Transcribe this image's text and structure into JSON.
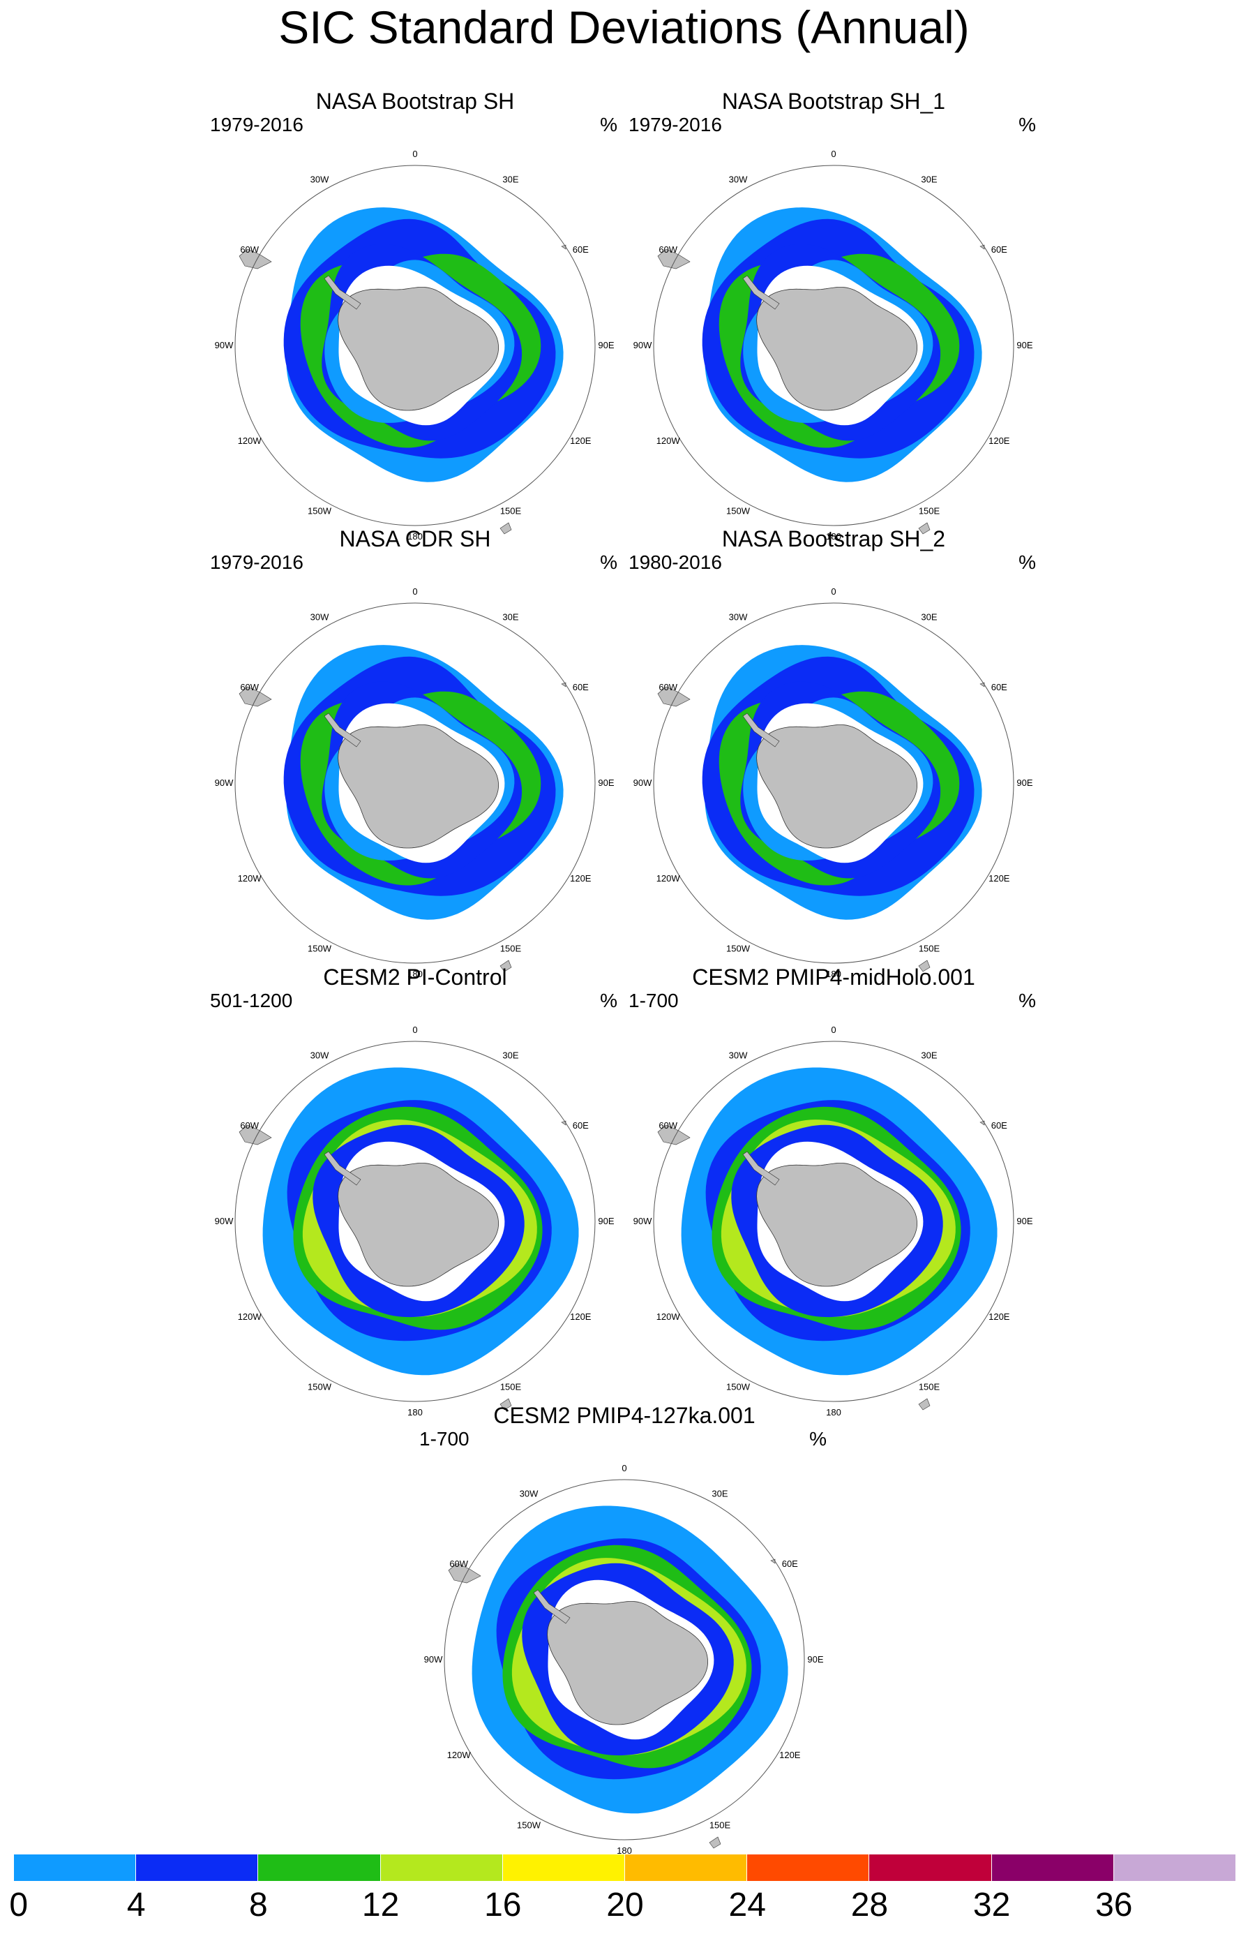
{
  "title": "SIC Standard Deviations (Annual)",
  "unit": "%",
  "longitude_labels": [
    "0",
    "30E",
    "60E",
    "90E",
    "120E",
    "150E",
    "180",
    "150W",
    "120W",
    "90W",
    "60W",
    "30W"
  ],
  "panels": [
    {
      "title": "NASA Bootstrap SH",
      "years": "1979-2016",
      "style": "obs"
    },
    {
      "title": "NASA Bootstrap SH_1",
      "years": "1979-2016",
      "style": "obs"
    },
    {
      "title": "NASA CDR SH",
      "years": "1979-2016",
      "style": "obs"
    },
    {
      "title": "NASA Bootstrap SH_2",
      "years": "1980-2016",
      "style": "obs"
    },
    {
      "title": "CESM2 PI-Control",
      "years": "501-1200",
      "style": "model"
    },
    {
      "title": "CESM2 PMIP4-midHolo.001",
      "years": "1-700",
      "style": "model"
    },
    {
      "title": "CESM2 PMIP4-127ka.001",
      "years": "1-700",
      "style": "model"
    }
  ],
  "colorbar": {
    "labels": [
      "0",
      "4",
      "8",
      "12",
      "16",
      "20",
      "24",
      "28",
      "32",
      "36"
    ],
    "colors": [
      "#0f9bff",
      "#0b2cf5",
      "#1fbd16",
      "#b4e81e",
      "#fff200",
      "#ffbb00",
      "#ff4a00",
      "#c0003a",
      "#8a0068",
      "#c8a8d6"
    ]
  },
  "colors": {
    "land": "#bfbfbf",
    "background": "#ffffff"
  }
}
